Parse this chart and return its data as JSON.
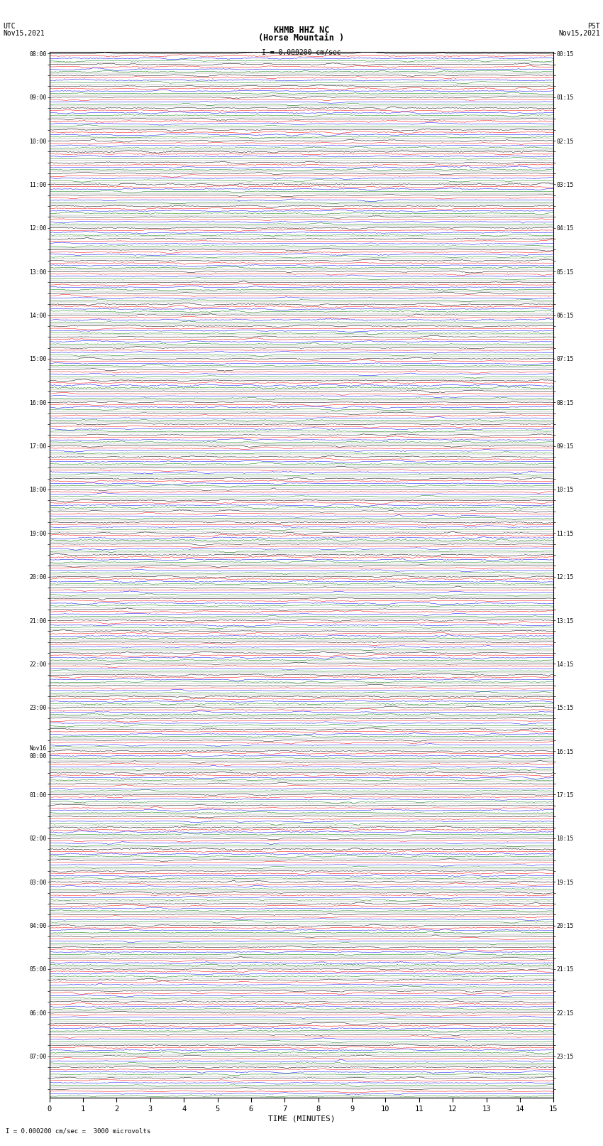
{
  "title_line1": "KHMB HHZ NC",
  "title_line2": "(Horse Mountain )",
  "scale_label": "I = 0.000200 cm/sec",
  "footer_label": "I = 0.000200 cm/sec =  3000 microvolts",
  "utc_label": "UTC\nNov15,2021",
  "pst_label": "PST\nNov15,2021",
  "xlabel": "TIME (MINUTES)",
  "xmin": 0,
  "xmax": 15,
  "xticks": [
    0,
    1,
    2,
    3,
    4,
    5,
    6,
    7,
    8,
    9,
    10,
    11,
    12,
    13,
    14,
    15
  ],
  "background_color": "#ffffff",
  "trace_colors": [
    "black",
    "red",
    "blue",
    "green"
  ],
  "total_rows": 96,
  "figwidth": 8.5,
  "figheight": 16.13,
  "left_times": [
    "08:00",
    "",
    "",
    "",
    "09:00",
    "",
    "",
    "",
    "10:00",
    "",
    "",
    "",
    "11:00",
    "",
    "",
    "",
    "12:00",
    "",
    "",
    "",
    "13:00",
    "",
    "",
    "",
    "14:00",
    "",
    "",
    "",
    "15:00",
    "",
    "",
    "",
    "16:00",
    "",
    "",
    "",
    "17:00",
    "",
    "",
    "",
    "18:00",
    "",
    "",
    "",
    "19:00",
    "",
    "",
    "",
    "20:00",
    "",
    "",
    "",
    "21:00",
    "",
    "",
    "",
    "22:00",
    "",
    "",
    "",
    "23:00",
    "",
    "",
    "",
    "Nov16\n00:00",
    "",
    "",
    "",
    "01:00",
    "",
    "",
    "",
    "02:00",
    "",
    "",
    "",
    "03:00",
    "",
    "",
    "",
    "04:00",
    "",
    "",
    "",
    "05:00",
    "",
    "",
    "",
    "06:00",
    "",
    "",
    "",
    "07:00",
    "",
    "",
    ""
  ],
  "right_times": [
    "00:15",
    "",
    "",
    "",
    "01:15",
    "",
    "",
    "",
    "02:15",
    "",
    "",
    "",
    "03:15",
    "",
    "",
    "",
    "04:15",
    "",
    "",
    "",
    "05:15",
    "",
    "",
    "",
    "06:15",
    "",
    "",
    "",
    "07:15",
    "",
    "",
    "",
    "08:15",
    "",
    "",
    "",
    "09:15",
    "",
    "",
    "",
    "10:15",
    "",
    "",
    "",
    "11:15",
    "",
    "",
    "",
    "12:15",
    "",
    "",
    "",
    "13:15",
    "",
    "",
    "",
    "14:15",
    "",
    "",
    "",
    "15:15",
    "",
    "",
    "",
    "16:15",
    "",
    "",
    "",
    "17:15",
    "",
    "",
    "",
    "18:15",
    "",
    "",
    "",
    "19:15",
    "",
    "",
    "",
    "20:15",
    "",
    "",
    "",
    "21:15",
    "",
    "",
    "",
    "22:15",
    "",
    "",
    "",
    "23:15",
    "",
    "",
    ""
  ]
}
